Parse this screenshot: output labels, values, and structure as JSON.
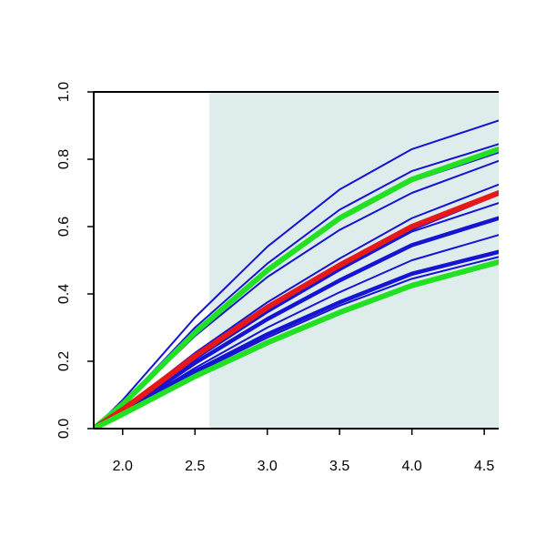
{
  "chart_data": {
    "type": "line",
    "title": "",
    "xlabel": "",
    "ylabel": "",
    "xlim": [
      1.8,
      4.6
    ],
    "ylim": [
      0.0,
      1.0
    ],
    "x_ticks": [
      2.0,
      2.5,
      3.0,
      3.5,
      4.0,
      4.5
    ],
    "x_tick_labels": [
      "2.0",
      "2.5",
      "3.0",
      "3.5",
      "4.0",
      "4.5"
    ],
    "y_ticks": [
      0.0,
      0.2,
      0.4,
      0.6,
      0.8,
      1.0
    ],
    "y_tick_labels": [
      "0.0",
      "0.2",
      "0.4",
      "0.6",
      "0.8",
      "1.0"
    ],
    "grid": false,
    "shaded_region": {
      "x_from": 2.6,
      "x_to": 4.6,
      "color": "#deecec"
    },
    "curve_origin": {
      "x": 1.8,
      "y": 0.0
    },
    "series": [
      {
        "color": "#1414d2",
        "emphasis": "thin",
        "points": [
          [
            2.0,
            0.085
          ],
          [
            2.5,
            0.33
          ],
          [
            3.0,
            0.54
          ],
          [
            3.5,
            0.71
          ],
          [
            4.0,
            0.83
          ],
          [
            4.6,
            0.915
          ]
        ]
      },
      {
        "color": "#1414d2",
        "emphasis": "thin",
        "points": [
          [
            2.0,
            0.075
          ],
          [
            2.5,
            0.3
          ],
          [
            3.0,
            0.49
          ],
          [
            3.5,
            0.65
          ],
          [
            4.0,
            0.765
          ],
          [
            4.6,
            0.845
          ]
        ]
      },
      {
        "color": "#1414d2",
        "emphasis": "thin",
        "points": [
          [
            2.0,
            0.072
          ],
          [
            2.5,
            0.285
          ],
          [
            3.0,
            0.47
          ],
          [
            3.5,
            0.62
          ],
          [
            4.0,
            0.735
          ],
          [
            4.6,
            0.82
          ]
        ]
      },
      {
        "color": "#1414d2",
        "emphasis": "thin",
        "points": [
          [
            2.0,
            0.07
          ],
          [
            2.5,
            0.275
          ],
          [
            3.0,
            0.45
          ],
          [
            3.5,
            0.59
          ],
          [
            4.0,
            0.7
          ],
          [
            4.6,
            0.795
          ]
        ]
      },
      {
        "color": "#1414d2",
        "emphasis": "thin",
        "points": [
          [
            2.0,
            0.058
          ],
          [
            2.5,
            0.225
          ],
          [
            3.0,
            0.375
          ],
          [
            3.5,
            0.505
          ],
          [
            4.0,
            0.625
          ],
          [
            4.6,
            0.725
          ]
        ]
      },
      {
        "color": "#1414d2",
        "emphasis": "thin",
        "points": [
          [
            2.0,
            0.052
          ],
          [
            2.5,
            0.205
          ],
          [
            3.0,
            0.345
          ],
          [
            3.5,
            0.47
          ],
          [
            4.0,
            0.585
          ],
          [
            4.6,
            0.67
          ]
        ]
      },
      {
        "color": "#1414d2",
        "emphasis": "thick",
        "points": [
          [
            2.0,
            0.05
          ],
          [
            2.5,
            0.195
          ],
          [
            3.0,
            0.325
          ],
          [
            3.5,
            0.44
          ],
          [
            4.0,
            0.545
          ],
          [
            4.6,
            0.625
          ]
        ]
      },
      {
        "color": "#1414d2",
        "emphasis": "thin",
        "points": [
          [
            2.0,
            0.048
          ],
          [
            2.5,
            0.18
          ],
          [
            3.0,
            0.3
          ],
          [
            3.5,
            0.405
          ],
          [
            4.0,
            0.5
          ],
          [
            4.6,
            0.575
          ]
        ]
      },
      {
        "color": "#1414d2",
        "emphasis": "thick",
        "points": [
          [
            2.0,
            0.047
          ],
          [
            2.5,
            0.17
          ],
          [
            3.0,
            0.28
          ],
          [
            3.5,
            0.375
          ],
          [
            4.0,
            0.46
          ],
          [
            4.6,
            0.525
          ]
        ]
      },
      {
        "color": "#1414d2",
        "emphasis": "thin",
        "points": [
          [
            2.0,
            0.046
          ],
          [
            2.5,
            0.165
          ],
          [
            3.0,
            0.27
          ],
          [
            3.5,
            0.365
          ],
          [
            4.0,
            0.445
          ],
          [
            4.6,
            0.51
          ]
        ]
      },
      {
        "color": "#1414d2",
        "emphasis": "thin",
        "points": [
          [
            2.0,
            0.055
          ],
          [
            2.5,
            0.21
          ],
          [
            3.0,
            0.35
          ],
          [
            3.5,
            0.475
          ],
          [
            4.0,
            0.59
          ],
          [
            4.6,
            0.695
          ]
        ]
      },
      {
        "color": "#22e022",
        "emphasis": "highlight",
        "points": [
          [
            2.0,
            0.072
          ],
          [
            2.5,
            0.285
          ],
          [
            3.0,
            0.47
          ],
          [
            3.5,
            0.625
          ],
          [
            4.0,
            0.74
          ],
          [
            4.6,
            0.83
          ]
        ]
      },
      {
        "color": "#e81818",
        "emphasis": "highlight",
        "points": [
          [
            2.0,
            0.056
          ],
          [
            2.5,
            0.215
          ],
          [
            3.0,
            0.36
          ],
          [
            3.5,
            0.485
          ],
          [
            4.0,
            0.6
          ],
          [
            4.6,
            0.7
          ]
        ]
      },
      {
        "color": "#22e022",
        "emphasis": "highlight",
        "points": [
          [
            2.0,
            0.043
          ],
          [
            2.5,
            0.155
          ],
          [
            3.0,
            0.255
          ],
          [
            3.5,
            0.345
          ],
          [
            4.0,
            0.425
          ],
          [
            4.6,
            0.495
          ]
        ]
      }
    ]
  }
}
